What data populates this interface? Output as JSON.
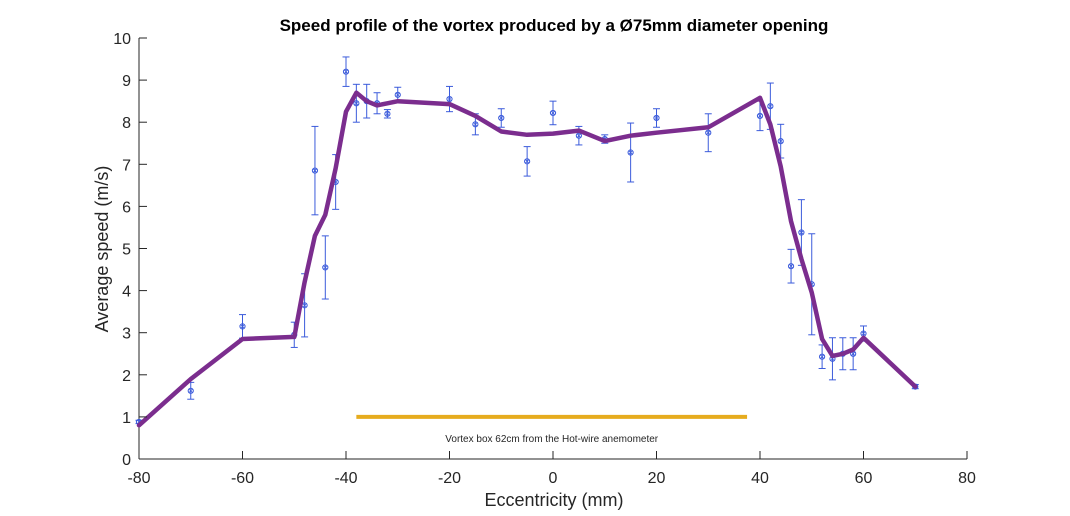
{
  "chart_data": {
    "type": "line",
    "title": "Speed profile of the vortex produced by a Ø75mm diameter opening",
    "xlabel": "Eccentricity (mm)",
    "ylabel": "Average speed (m/s)",
    "xlim": [
      -80,
      80
    ],
    "ylim": [
      0,
      10
    ],
    "xticks": [
      -80,
      -60,
      -40,
      -20,
      0,
      20,
      40,
      60,
      80
    ],
    "yticks": [
      0,
      1,
      2,
      3,
      4,
      5,
      6,
      7,
      8,
      9,
      10
    ],
    "xtick_labels": [
      "-80",
      "-60",
      "-40",
      "-20",
      "0",
      "20",
      "40",
      "60",
      "80"
    ],
    "ytick_labels": [
      "0",
      "1",
      "2",
      "3",
      "4",
      "5",
      "6",
      "7",
      "8",
      "9",
      "10"
    ],
    "grid": false,
    "series": [
      {
        "kind": "errorbar",
        "color": "#3b5bdb",
        "marker": "circle-x",
        "points": [
          {
            "x": -80,
            "y": 0.88,
            "err": 0.04
          },
          {
            "x": -70,
            "y": 1.62,
            "err": 0.2
          },
          {
            "x": -60,
            "y": 3.15,
            "err": 0.28
          },
          {
            "x": -50,
            "y": 2.95,
            "err": 0.3
          },
          {
            "x": -48,
            "y": 3.65,
            "err": 0.75
          },
          {
            "x": -46,
            "y": 6.85,
            "err": 1.05
          },
          {
            "x": -44,
            "y": 4.55,
            "err": 0.75
          },
          {
            "x": -42,
            "y": 6.58,
            "err": 0.65
          },
          {
            "x": -40,
            "y": 9.2,
            "err": 0.35
          },
          {
            "x": -38,
            "y": 8.45,
            "err": 0.45
          },
          {
            "x": -36,
            "y": 8.5,
            "err": 0.4
          },
          {
            "x": -34,
            "y": 8.45,
            "err": 0.25
          },
          {
            "x": -32,
            "y": 8.2,
            "err": 0.1
          },
          {
            "x": -30,
            "y": 8.65,
            "err": 0.18
          },
          {
            "x": -20,
            "y": 8.55,
            "err": 0.3
          },
          {
            "x": -15,
            "y": 7.95,
            "err": 0.25
          },
          {
            "x": -10,
            "y": 8.1,
            "err": 0.22
          },
          {
            "x": -5,
            "y": 7.07,
            "err": 0.35
          },
          {
            "x": 0,
            "y": 8.22,
            "err": 0.28
          },
          {
            "x": 5,
            "y": 7.68,
            "err": 0.22
          },
          {
            "x": 10,
            "y": 7.6,
            "err": 0.1
          },
          {
            "x": 15,
            "y": 7.28,
            "err": 0.7
          },
          {
            "x": 20,
            "y": 8.1,
            "err": 0.22
          },
          {
            "x": 30,
            "y": 7.75,
            "err": 0.45
          },
          {
            "x": 40,
            "y": 8.15,
            "err": 0.35
          },
          {
            "x": 42,
            "y": 8.38,
            "err": 0.55
          },
          {
            "x": 44,
            "y": 7.55,
            "err": 0.4
          },
          {
            "x": 46,
            "y": 4.58,
            "err": 0.4
          },
          {
            "x": 48,
            "y": 5.38,
            "err": 0.78
          },
          {
            "x": 50,
            "y": 4.15,
            "err": 1.2
          },
          {
            "x": 52,
            "y": 2.43,
            "err": 0.28
          },
          {
            "x": 54,
            "y": 2.38,
            "err": 0.5
          },
          {
            "x": 56,
            "y": 2.5,
            "err": 0.38
          },
          {
            "x": 58,
            "y": 2.5,
            "err": 0.38
          },
          {
            "x": 60,
            "y": 2.98,
            "err": 0.18
          },
          {
            "x": 70,
            "y": 1.72,
            "err": 0.05
          }
        ]
      },
      {
        "kind": "line",
        "color": "#7b2d8e",
        "points": [
          {
            "x": -80,
            "y": 0.8
          },
          {
            "x": -70,
            "y": 1.9
          },
          {
            "x": -60,
            "y": 2.85
          },
          {
            "x": -50,
            "y": 2.9
          },
          {
            "x": -48,
            "y": 4.2
          },
          {
            "x": -46,
            "y": 5.3
          },
          {
            "x": -44,
            "y": 5.8
          },
          {
            "x": -42,
            "y": 6.9
          },
          {
            "x": -40,
            "y": 8.25
          },
          {
            "x": -38,
            "y": 8.7
          },
          {
            "x": -36,
            "y": 8.5
          },
          {
            "x": -34,
            "y": 8.4
          },
          {
            "x": -32,
            "y": 8.45
          },
          {
            "x": -30,
            "y": 8.5
          },
          {
            "x": -20,
            "y": 8.43
          },
          {
            "x": -15,
            "y": 8.15
          },
          {
            "x": -10,
            "y": 7.78
          },
          {
            "x": -5,
            "y": 7.7
          },
          {
            "x": 0,
            "y": 7.73
          },
          {
            "x": 5,
            "y": 7.8
          },
          {
            "x": 10,
            "y": 7.55
          },
          {
            "x": 15,
            "y": 7.68
          },
          {
            "x": 20,
            "y": 7.75
          },
          {
            "x": 30,
            "y": 7.88
          },
          {
            "x": 40,
            "y": 8.58
          },
          {
            "x": 42,
            "y": 7.95
          },
          {
            "x": 44,
            "y": 6.95
          },
          {
            "x": 46,
            "y": 5.65
          },
          {
            "x": 48,
            "y": 4.75
          },
          {
            "x": 50,
            "y": 3.95
          },
          {
            "x": 52,
            "y": 2.85
          },
          {
            "x": 54,
            "y": 2.45
          },
          {
            "x": 56,
            "y": 2.5
          },
          {
            "x": 58,
            "y": 2.6
          },
          {
            "x": 60,
            "y": 2.88
          },
          {
            "x": 70,
            "y": 1.72
          }
        ]
      }
    ],
    "annotations": [
      {
        "kind": "hline-segment",
        "x": [
          -38,
          37.5
        ],
        "y": 1.0,
        "color": "#e6ac1e",
        "text": "Vortex box 62cm from the Hot-wire anemometer"
      }
    ]
  }
}
